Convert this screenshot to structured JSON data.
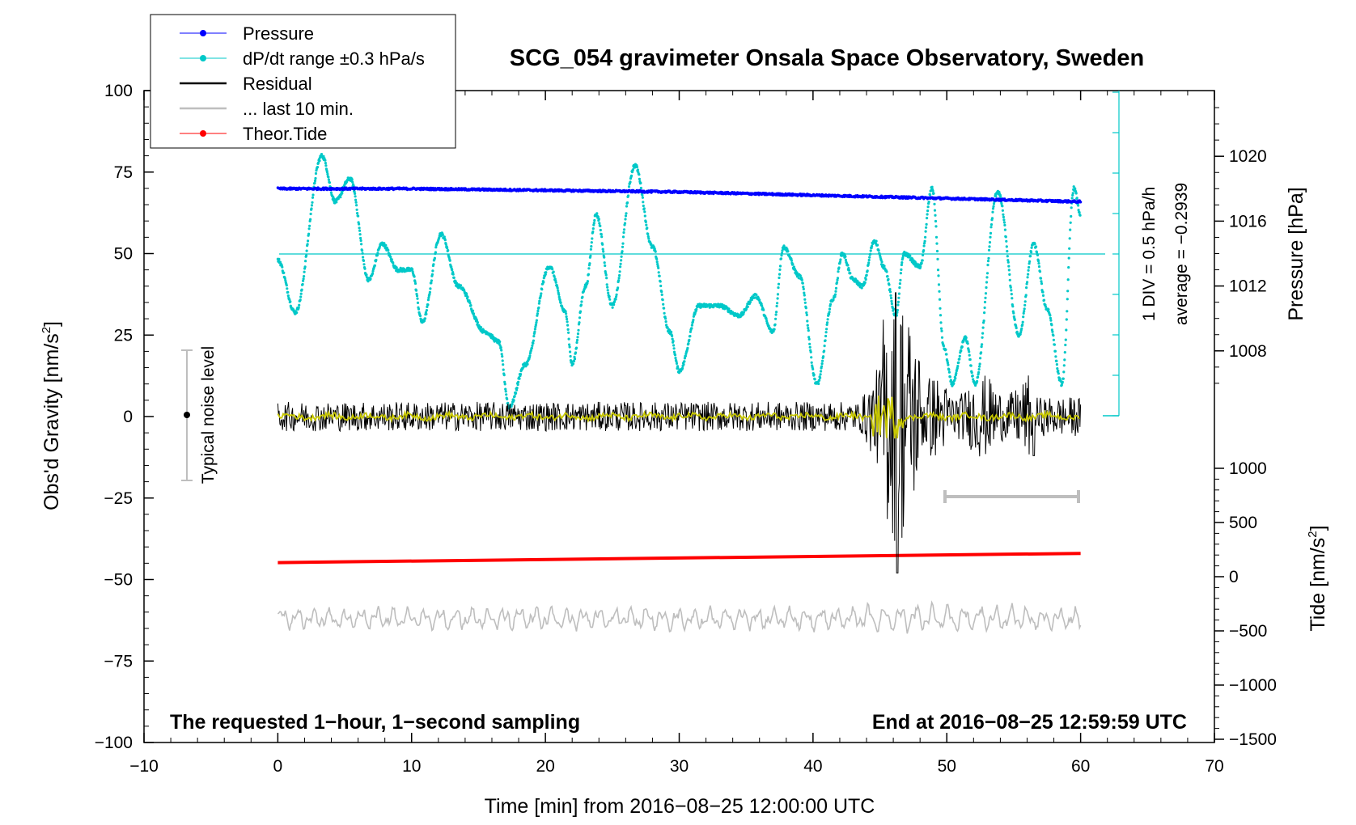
{
  "chart_data": {
    "type": "line",
    "title": "SCG_054 gravimeter Onsala Space Observatory, Sweden",
    "xlabel": "Time [min] from 2016−08−25 12:00:00 UTC",
    "ylabel_left": "Obs'd Gravity [nm/s",
    "ylabel_pressure": "Pressure [hPa]",
    "ylabel_tide": "Tide [nm/s",
    "superscript": "2",
    "ylabel_close": "]",
    "xlim": [
      -10,
      70
    ],
    "ylim_left": [
      -100,
      100
    ],
    "x_ticks": [
      "−10",
      "0",
      "10",
      "20",
      "30",
      "40",
      "50",
      "60",
      "70"
    ],
    "y_ticks_left": [
      "100",
      "75",
      "50",
      "25",
      "0",
      "−25",
      "−50",
      "−75",
      "−100"
    ],
    "pressure_ticks": [
      "1020",
      "1016",
      "1012",
      "1008"
    ],
    "tide_ticks": [
      "1000",
      "500",
      "0",
      "−500",
      "−1000",
      "−1500"
    ],
    "legend": [
      "Pressure",
      "dP/dt range ±0.3 hPa/s",
      "Residual",
      "... last 10 min.",
      "Theor.Tide"
    ],
    "annotations": {
      "noise": "Typical noise level",
      "div": "1 DIV = 0.5 hPa/h",
      "average": "average = −0.2939",
      "bottom_left": "The requested 1−hour, 1−second sampling",
      "bottom_right": "End at 2016−08−25 12:59:59 UTC"
    },
    "colors": {
      "pressure": "#0000ff",
      "dpdt": "#00c8c8",
      "residual": "#000000",
      "residual_smooth": "#c8c800",
      "last10": "#bebebe",
      "tide": "#ff0000"
    },
    "series": [
      {
        "name": "Pressure",
        "axis": "pressure",
        "x": [
          0,
          10,
          20,
          30,
          40,
          50,
          60
        ],
        "y": [
          1018.0,
          1018.0,
          1017.9,
          1017.8,
          1017.6,
          1017.4,
          1017.2
        ]
      },
      {
        "name": "dP/dt range ±0.3 hPa/s",
        "axis": "left",
        "x": [
          0,
          1.3,
          3.3,
          4.3,
          5.4,
          6.8,
          7.8,
          9.0,
          10.0,
          10.8,
          12.2,
          13.5,
          15.5,
          16.5,
          17.3,
          18.5,
          20.3,
          21.5,
          22.0,
          23.0,
          23.8,
          25.0,
          26.7,
          28.0,
          29.3,
          30.0,
          31.5,
          33.0,
          34.5,
          35.7,
          37.0,
          37.8,
          39.0,
          40.3,
          41.5,
          42.2,
          43.0,
          43.7,
          44.6,
          45.3,
          46.2,
          46.8,
          48.0,
          48.9,
          49.8,
          50.4,
          51.4,
          52.1,
          53.8,
          55.4,
          56.5,
          57.5,
          58.6,
          59.5,
          60.0
        ],
        "y": [
          48,
          32,
          80,
          66,
          73,
          42,
          53,
          45,
          45,
          29,
          56,
          40,
          26,
          23,
          3,
          16,
          46,
          32,
          16,
          40,
          62,
          34,
          77,
          52,
          26,
          14,
          34,
          34,
          31,
          37,
          26,
          52,
          43,
          10,
          36,
          50,
          42,
          40,
          54,
          46,
          31,
          50,
          46,
          70,
          21,
          10,
          24,
          10,
          69,
          25,
          53,
          33,
          10,
          70,
          62
        ]
      },
      {
        "name": "Residual",
        "axis": "left",
        "x": [
          0,
          43.5,
          45.0,
          45.8,
          46.2,
          46.6,
          47.5,
          49.0,
          56.5,
          60.0
        ],
        "y": [
          0,
          0,
          12,
          -25,
          38,
          -48,
          14,
          8,
          -12,
          0
        ]
      },
      {
        "name": "... last 10 min.",
        "axis": "left",
        "x": [
          0,
          60
        ],
        "y": [
          -62,
          -62
        ]
      },
      {
        "name": "Theor.Tide",
        "axis": "tide",
        "x": [
          0,
          60
        ],
        "y": [
          130,
          215
        ]
      }
    ]
  }
}
